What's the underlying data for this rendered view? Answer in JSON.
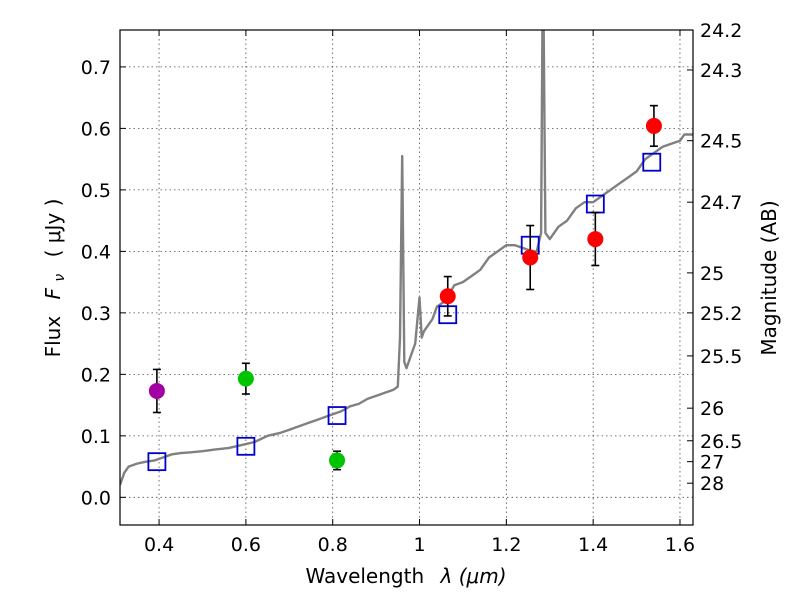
{
  "chart_data": {
    "type": "scatter",
    "xlabel": "Wavelength",
    "xlabel_math": "λ (μm)",
    "ylabel": "Flux",
    "ylabel_math": "F",
    "ylabel_sub": "ν",
    "ylabel_unit": "( μJy )",
    "y2label": "Magnitude (AB)",
    "xlim": [
      0.31,
      1.63
    ],
    "ylim": [
      -0.045,
      0.76
    ],
    "grid": true,
    "x_ticks": [
      0.4,
      0.6,
      0.8,
      1.0,
      1.2,
      1.4,
      1.6
    ],
    "x_tick_labels": [
      "0.4",
      "0.6",
      "0.8",
      "1",
      "1.2",
      "1.4",
      "1.6"
    ],
    "y_ticks": [
      0.0,
      0.1,
      0.2,
      0.3,
      0.4,
      0.5,
      0.6,
      0.7
    ],
    "y_tick_labels": [
      "0.0",
      "0.1",
      "0.2",
      "0.3",
      "0.4",
      "0.5",
      "0.6",
      "0.7"
    ],
    "y2_ticks": [
      {
        "label": "24.2",
        "flux": 0.76
      },
      {
        "label": "24.3",
        "flux": 0.695
      },
      {
        "label": "24.5",
        "flux": 0.58
      },
      {
        "label": "24.7",
        "flux": 0.48
      },
      {
        "label": "25",
        "flux": 0.365
      },
      {
        "label": "25.2",
        "flux": 0.3
      },
      {
        "label": "25.5",
        "flux": 0.23
      },
      {
        "label": "26",
        "flux": 0.145
      },
      {
        "label": "26.5",
        "flux": 0.092
      },
      {
        "label": "27",
        "flux": 0.058
      },
      {
        "label": "28",
        "flux": 0.023
      }
    ],
    "series": [
      {
        "name": "model-spectrum",
        "kind": "line",
        "color": "#808080",
        "x": [
          0.31,
          0.32,
          0.33,
          0.35,
          0.37,
          0.39,
          0.41,
          0.43,
          0.45,
          0.47,
          0.5,
          0.53,
          0.56,
          0.59,
          0.62,
          0.65,
          0.68,
          0.7,
          0.72,
          0.74,
          0.76,
          0.78,
          0.8,
          0.82,
          0.84,
          0.86,
          0.88,
          0.9,
          0.92,
          0.94,
          0.95,
          0.955,
          0.96,
          0.965,
          0.97,
          0.98,
          0.99,
          1.0,
          1.005,
          1.01,
          1.02,
          1.03,
          1.04,
          1.06,
          1.08,
          1.1,
          1.12,
          1.14,
          1.16,
          1.18,
          1.2,
          1.22,
          1.24,
          1.26,
          1.27,
          1.28,
          1.283,
          1.286,
          1.29,
          1.3,
          1.32,
          1.34,
          1.36,
          1.38,
          1.4,
          1.42,
          1.44,
          1.46,
          1.48,
          1.5,
          1.52,
          1.54,
          1.56,
          1.58,
          1.6,
          1.61,
          1.63
        ],
        "y": [
          0.02,
          0.04,
          0.05,
          0.055,
          0.058,
          0.06,
          0.065,
          0.07,
          0.072,
          0.073,
          0.075,
          0.078,
          0.08,
          0.085,
          0.09,
          0.1,
          0.105,
          0.11,
          0.115,
          0.12,
          0.125,
          0.13,
          0.135,
          0.14,
          0.148,
          0.152,
          0.16,
          0.165,
          0.17,
          0.175,
          0.18,
          0.26,
          0.555,
          0.22,
          0.21,
          0.23,
          0.25,
          0.325,
          0.26,
          0.27,
          0.28,
          0.29,
          0.31,
          0.32,
          0.345,
          0.35,
          0.36,
          0.37,
          0.39,
          0.4,
          0.41,
          0.41,
          0.405,
          0.4,
          0.4,
          0.43,
          0.76,
          0.76,
          0.43,
          0.42,
          0.44,
          0.45,
          0.47,
          0.48,
          0.48,
          0.49,
          0.5,
          0.51,
          0.52,
          0.53,
          0.55,
          0.56,
          0.57,
          0.575,
          0.58,
          0.59,
          0.59
        ]
      },
      {
        "name": "model-photometry",
        "kind": "open-square",
        "color": "#0000cc",
        "x": [
          0.395,
          0.6,
          0.81,
          1.065,
          1.255,
          1.405,
          1.535
        ],
        "y": [
          0.058,
          0.083,
          0.133,
          0.297,
          0.41,
          0.477,
          0.545
        ]
      },
      {
        "name": "observed-purple",
        "kind": "point",
        "color": "#a300a3",
        "x": [
          0.395
        ],
        "y": [
          0.173
        ],
        "yerr": [
          0.035
        ]
      },
      {
        "name": "observed-green",
        "kind": "point",
        "color": "#00c400",
        "x": [
          0.6,
          0.81
        ],
        "y": [
          0.193,
          0.06
        ],
        "yerr": [
          0.025,
          0.015
        ]
      },
      {
        "name": "observed-red",
        "kind": "point",
        "color": "#ff0000",
        "x": [
          1.065,
          1.255,
          1.405,
          1.54
        ],
        "y": [
          0.327,
          0.39,
          0.42,
          0.604
        ],
        "yerr": [
          0.032,
          0.052,
          0.043,
          0.033
        ]
      }
    ]
  }
}
